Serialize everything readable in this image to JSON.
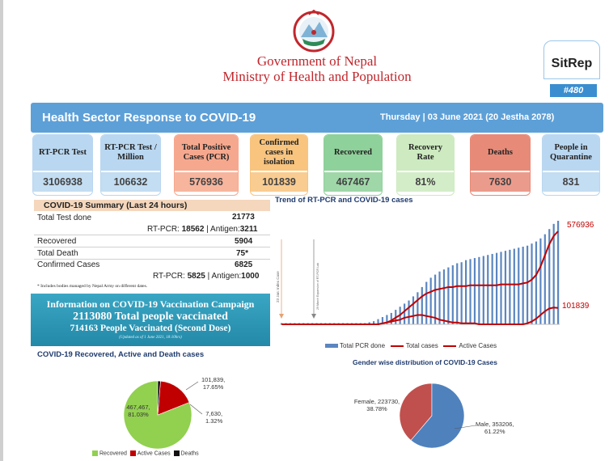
{
  "header": {
    "gov_line1": "Government of Nepal",
    "gov_line2": "Ministry of Health and Population",
    "sitrep_label": "SitRep",
    "sitrep_number": "#480"
  },
  "banner": {
    "title": "Health Sector Response to COVID-19",
    "date": "Thursday | 03 June 2021 (20 Jestha 2078)"
  },
  "tiles": [
    {
      "label": "RT-PCR Test",
      "value": "3106938",
      "color": "#b9d7f0"
    },
    {
      "label": "RT-PCR Test / Million",
      "value": "106632",
      "color": "#b9d7f0"
    },
    {
      "label": "Total Positive Cases (PCR)",
      "value": "576936",
      "color": "#f6a88e"
    },
    {
      "label": "Confirmed cases in isolation",
      "value": "101839",
      "color": "#f8c47e"
    },
    {
      "label": "Recovered",
      "value": "467467",
      "color": "#8fd19a"
    },
    {
      "label": "Recovery Rate",
      "value": "81%",
      "color": "#cdeac0"
    },
    {
      "label": "Deaths",
      "value": "7630",
      "color": "#e88a78"
    },
    {
      "label": "People in Quarantine",
      "value": "831",
      "color": "#b9d7f0"
    }
  ],
  "summary": {
    "title": "COVID-19 Summary (Last 24 hours)",
    "total_test_label": "Total Test done",
    "total_test_value": "21773",
    "test_split_prefix": "RT-PCR: ",
    "test_split_pcr": "18562",
    "test_split_sep": " | Antigen:",
    "test_split_antigen": "3211",
    "recovered_label": "Recovered",
    "recovered_value": "5904",
    "death_label": "Total Death",
    "death_value": "75*",
    "confirmed_label": "Confirmed Cases",
    "confirmed_value": "6825",
    "case_split_prefix": "RT-PCR: ",
    "case_split_pcr": "5825",
    "case_split_sep": " | Antigen:",
    "case_split_antigen": "1000",
    "footnote": "* Includes bodies managed by Nepal Army on different dates."
  },
  "vaccination": {
    "title": "Information on COVID-19 Vaccination Campaign",
    "total": "2113080 Total people vaccinated",
    "second_dose": "714163 People Vaccinated (Second Dose)",
    "note": "(Updated as of 1 June 2021, 18:10hrs)"
  },
  "trend": {
    "title": "Trend of RT-PCR and COVID-19 cases",
    "label_total": "576936",
    "label_active": "101839",
    "annot1": "23 Jan: Index Case",
    "annot2": "29 March Expansion of RT-PCR Lab",
    "legend_pcr": "Total PCR done",
    "legend_total": "Total cases",
    "legend_active": "Active Cases",
    "color_pcr": "#5b86c0",
    "color_cases": "#c00000"
  },
  "pie_status": {
    "title": "COVID-19 Recovered, Active and Death cases",
    "recovered_label": "467,467,",
    "recovered_pct": "81.03%",
    "active_label": "101,839,",
    "active_pct": "17.65%",
    "deaths_label": "7,630,",
    "deaths_pct": "1.32%",
    "legend_recovered": "Recovered",
    "legend_active": "Active Cases",
    "legend_deaths": "Deaths"
  },
  "pie_gender": {
    "title": "Gender wise distribution of COVID-19 Cases",
    "female_label": "Female, 223730,",
    "female_pct": "38.78%",
    "male_label": "Male, 353206,",
    "male_pct": "61.22%"
  },
  "chart_data": [
    {
      "type": "pie",
      "title": "COVID-19 Recovered, Active and Death cases",
      "categories": [
        "Recovered",
        "Active Cases",
        "Deaths"
      ],
      "values": [
        467467,
        101839,
        7630
      ],
      "percent": [
        81.03,
        17.65,
        1.32
      ],
      "colors": [
        "#92d050",
        "#c00000",
        "#111111"
      ],
      "legend": "bottom"
    },
    {
      "type": "pie",
      "title": "Gender wise distribution of COVID-19 Cases",
      "categories": [
        "Female",
        "Male"
      ],
      "values": [
        223730,
        353206
      ],
      "percent": [
        38.78,
        61.22
      ],
      "colors": [
        "#c0504d",
        "#4f81bd"
      ]
    },
    {
      "type": "bar",
      "title": "Trend of RT-PCR and COVID-19 cases",
      "series": [
        {
          "name": "Total PCR done",
          "values": [
            0,
            0,
            0,
            0,
            0,
            0,
            0,
            0,
            0,
            0,
            0,
            0,
            0,
            0,
            0,
            0,
            0,
            0,
            0,
            0.01,
            0.02,
            0.03,
            0.05,
            0.07,
            0.09,
            0.11,
            0.14,
            0.17,
            0.2,
            0.23,
            0.27,
            0.31,
            0.36,
            0.41,
            0.45,
            0.48,
            0.51,
            0.53,
            0.55,
            0.57,
            0.59,
            0.6,
            0.62,
            0.63,
            0.64,
            0.65,
            0.66,
            0.67,
            0.68,
            0.69,
            0.7,
            0.71,
            0.72,
            0.73,
            0.74,
            0.75,
            0.76,
            0.78,
            0.8,
            0.83,
            0.87,
            0.92,
            0.97,
            1.0
          ]
        },
        {
          "name": "Total cases",
          "values": [
            0,
            0,
            0,
            0,
            0,
            0,
            0,
            0,
            0,
            0,
            0,
            0,
            0,
            0,
            0,
            0,
            0,
            0,
            0,
            0,
            0,
            0,
            0,
            0.01,
            0.02,
            0.04,
            0.07,
            0.1,
            0.14,
            0.18,
            0.22,
            0.26,
            0.3,
            0.33,
            0.35,
            0.37,
            0.38,
            0.39,
            0.4,
            0.4,
            0.41,
            0.41,
            0.41,
            0.42,
            0.42,
            0.42,
            0.42,
            0.42,
            0.42,
            0.42,
            0.43,
            0.43,
            0.43,
            0.43,
            0.43,
            0.44,
            0.45,
            0.48,
            0.53,
            0.62,
            0.74,
            0.86,
            0.95,
            1.0
          ]
        },
        {
          "name": "Active Cases",
          "values": [
            0,
            0,
            0,
            0,
            0,
            0,
            0,
            0,
            0,
            0,
            0,
            0,
            0,
            0,
            0,
            0,
            0,
            0,
            0,
            0,
            0,
            0,
            0,
            0.01,
            0.02,
            0.03,
            0.04,
            0.05,
            0.07,
            0.08,
            0.09,
            0.1,
            0.1,
            0.09,
            0.08,
            0.07,
            0.05,
            0.04,
            0.03,
            0.02,
            0.02,
            0.01,
            0.01,
            0.01,
            0.01,
            0,
            0,
            0,
            0,
            0,
            0,
            0,
            0,
            0,
            0,
            0,
            0.01,
            0.03,
            0.06,
            0.1,
            0.14,
            0.17,
            0.18,
            0.176
          ]
        }
      ]
    }
  ]
}
